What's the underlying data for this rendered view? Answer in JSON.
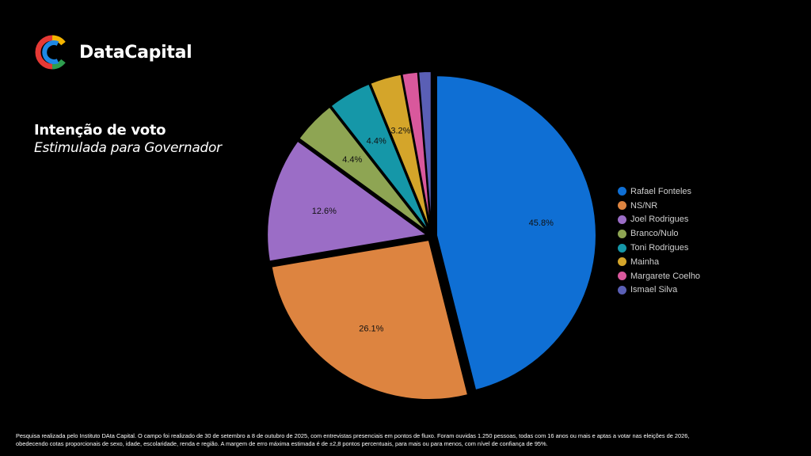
{
  "brand": {
    "name": "DataCapital"
  },
  "heading": {
    "title": "Intenção de voto",
    "subtitle": "Estimulada para Governador"
  },
  "chart_data": {
    "type": "pie",
    "categories": [
      "Rafael Fonteles",
      "NS/NR",
      "Joel Rodrigues",
      "Branco/Nulo",
      "Toni Rodrigues",
      "Mainha",
      "Margarete Coelho",
      "Ismael Silva"
    ],
    "values": [
      45.8,
      26.1,
      12.6,
      4.4,
      4.4,
      3.2,
      1.6,
      1.3
    ],
    "data_labels": [
      "45.8%",
      "26.1%",
      "12.6%",
      "4.4%",
      "4.4%",
      "3.2%",
      "",
      ""
    ],
    "colors": [
      "#0f6fd4",
      "#dd8440",
      "#9b6dc6",
      "#8ea553",
      "#1597a8",
      "#d4a52a",
      "#d9589c",
      "#5a5fb5"
    ],
    "legend": "right",
    "start_angle_deg": 0,
    "direction": "clockwise"
  },
  "footnote": {
    "line1": "Pesquisa realizada pelo Instituto DAta Capital. O campo foi realizado de 30 de setembro a 8 de outubro de 2025, com entrevistas presenciais em pontos de fluxo. Foram ouvidas 1.250 pessoas, todas com 16 anos ou mais e aptas a votar nas eleições de 2026,",
    "line2": "obedecendo cotas proporcionais de sexo, idade, escolaridade, renda e região. A margem de erro máxima estimada é de ±2,8 pontos percentuais, para mais ou para menos, com nível de confiança de 95%."
  }
}
